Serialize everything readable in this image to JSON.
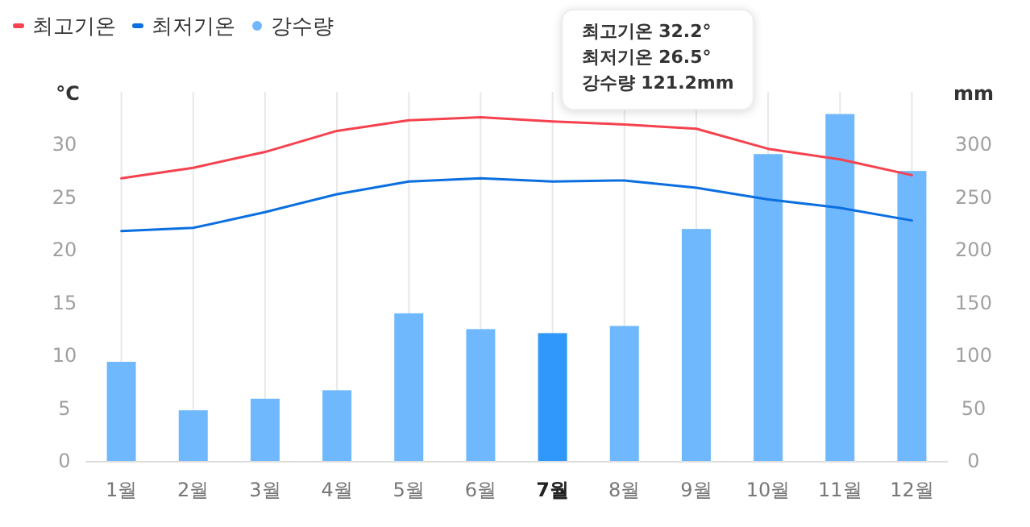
{
  "chart_data": {
    "type": "bar",
    "categories": [
      "1월",
      "2월",
      "3월",
      "4월",
      "5월",
      "6월",
      "7월",
      "8월",
      "9월",
      "10월",
      "11월",
      "12월"
    ],
    "series": [
      {
        "name": "최고기온",
        "type": "line",
        "color": "#f5424e",
        "values": [
          26.8,
          27.8,
          29.3,
          31.3,
          32.3,
          32.6,
          32.2,
          31.9,
          31.5,
          29.6,
          28.6,
          27.1
        ]
      },
      {
        "name": "최저기온",
        "type": "line",
        "color": "#0b6fe0",
        "values": [
          21.8,
          22.1,
          23.6,
          25.3,
          26.5,
          26.8,
          26.5,
          26.6,
          25.9,
          24.8,
          24.0,
          22.8
        ]
      },
      {
        "name": "강수량",
        "axis": "y2",
        "color": "#70b8fd",
        "colors": [
          "#70b8fd",
          "#70b8fd",
          "#70b8fd",
          "#70b8fd",
          "#70b8fd",
          "#70b8fd",
          "#2f98fa",
          "#70b8fd",
          "#70b8fd",
          "#70b8fd",
          "#70b8fd",
          "#70b8fd"
        ],
        "values": [
          94,
          48,
          59,
          67,
          140,
          125,
          121.2,
          128,
          220,
          291,
          329,
          275
        ]
      }
    ],
    "ylabel": "°C",
    "y2label": "mm",
    "ylim": [
      0,
      35
    ],
    "yticks": [
      0,
      5,
      10,
      15,
      20,
      25,
      30
    ],
    "y2lim": [
      0,
      350
    ],
    "y2ticks": [
      0,
      50,
      100,
      150,
      200,
      250,
      300
    ],
    "grid": "x",
    "legend": "top left",
    "annotations": [
      "최고기온 32.2°",
      "최저기온 26.5°",
      "강수량 121.2mm"
    ]
  }
}
